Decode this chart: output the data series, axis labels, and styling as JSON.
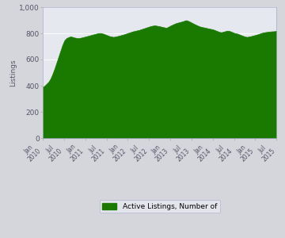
{
  "title": "",
  "ylabel": "Listings",
  "ylim": [
    0,
    1000
  ],
  "yticks": [
    0,
    200,
    400,
    600,
    800,
    1000
  ],
  "ytick_labels": [
    "0",
    "200",
    "400",
    "600",
    "800",
    "1,000"
  ],
  "fig_bg_color": "#d4d6dc",
  "plot_bg_color": "#e6e8f0",
  "area_color": "#1a7a00",
  "area_edge_color": "#1a7a00",
  "legend_label": "Active Listings, Number of",
  "legend_bg": "#e8eaf2",
  "legend_edge": "#aaaacc",
  "x_labels": [
    "Jan\n2010",
    "Jul\n2010",
    "Jan\n2011",
    "Jul\n2011",
    "Jan\n2012",
    "Jul\n2012",
    "Jan\n2013",
    "Jul\n2013",
    "Jan\n2014",
    "Jul\n2014",
    "Jan\n2015",
    "Jul\n2015"
  ],
  "values": [
    390,
    400,
    415,
    430,
    455,
    490,
    530,
    575,
    620,
    665,
    710,
    745,
    762,
    770,
    775,
    773,
    768,
    765,
    762,
    765,
    768,
    772,
    776,
    780,
    784,
    788,
    792,
    796,
    800,
    802,
    800,
    796,
    790,
    784,
    778,
    775,
    772,
    775,
    778,
    782,
    786,
    790,
    795,
    800,
    805,
    810,
    815,
    818,
    822,
    825,
    830,
    835,
    840,
    845,
    850,
    855,
    858,
    860,
    858,
    855,
    852,
    848,
    845,
    842,
    850,
    858,
    865,
    872,
    878,
    882,
    886,
    890,
    895,
    900,
    895,
    888,
    880,
    872,
    865,
    858,
    852,
    848,
    845,
    842,
    838,
    835,
    832,
    828,
    822,
    816,
    810,
    808,
    812,
    816,
    820,
    818,
    812,
    806,
    800,
    798,
    792,
    786,
    780,
    775,
    772,
    775,
    778,
    782,
    786,
    790,
    795,
    800,
    805,
    808,
    810,
    812,
    814,
    815,
    816,
    818
  ]
}
